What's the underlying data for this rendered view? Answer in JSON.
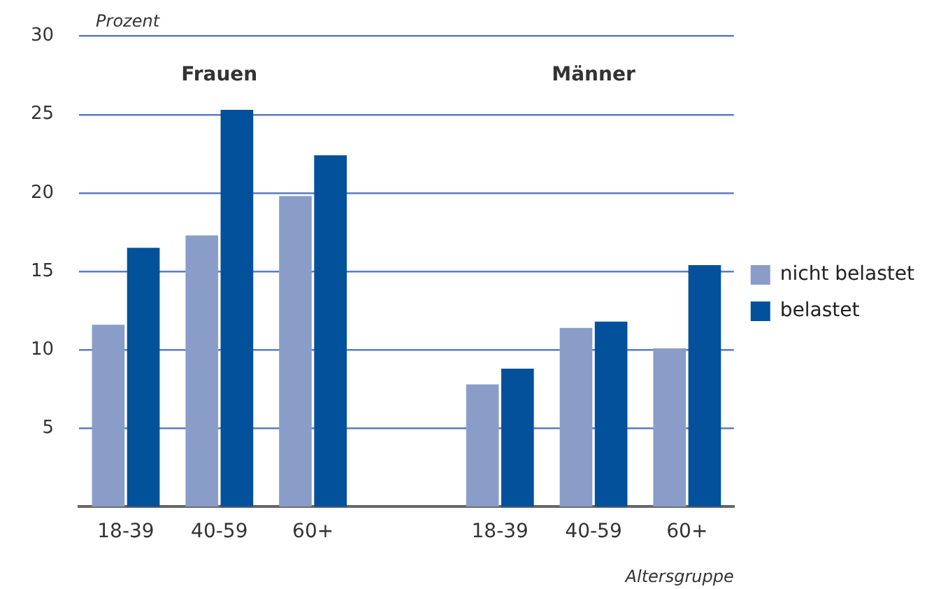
{
  "chart_data": {
    "type": "bar",
    "ylabel": "Prozent",
    "xlabel": "Altersgruppe",
    "categories": [
      "18-39",
      "40-59",
      "60+",
      null,
      "18-39",
      "40-59",
      "60+"
    ],
    "series": [
      {
        "name": "nicht belastet",
        "color": "#8a9dc9",
        "values": [
          11.6,
          17.3,
          19.8,
          null,
          7.8,
          11.4,
          10.1
        ]
      },
      {
        "name": "belastet",
        "color": "#03519b",
        "values": [
          16.5,
          25.3,
          22.4,
          null,
          8.8,
          11.8,
          15.4
        ]
      }
    ],
    "annotations": [
      "Frauen",
      "Männer"
    ],
    "ylim": [
      0,
      30
    ],
    "yticks": [
      5,
      10,
      15,
      20,
      25,
      30
    ],
    "grid": "y",
    "legend": "right"
  }
}
